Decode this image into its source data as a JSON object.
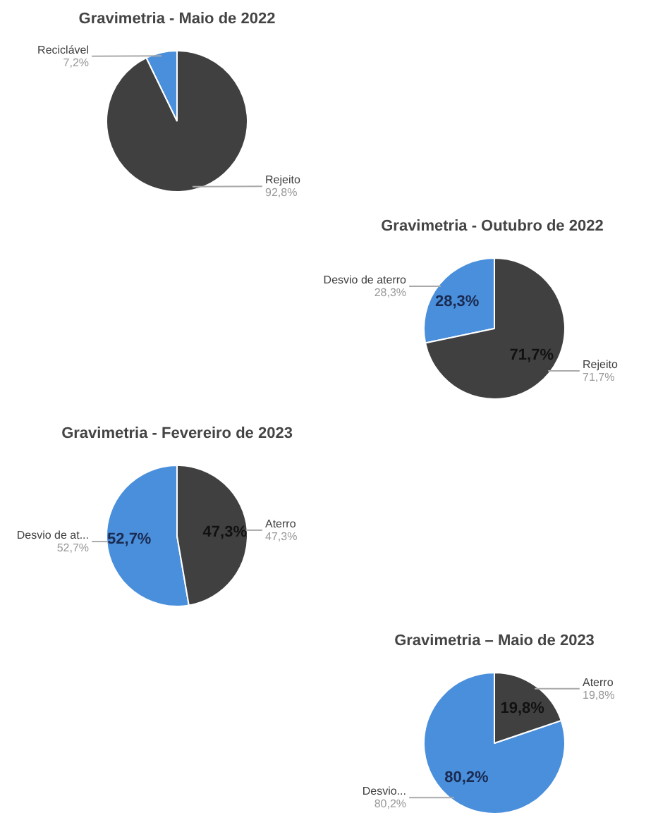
{
  "chart_data": [
    {
      "type": "pie",
      "title": "Gravimetria - Maio de 2022",
      "categories": [
        "Reciclável",
        "Rejeito"
      ],
      "values": [
        7.2,
        92.8
      ],
      "colors": [
        "#4a8fdb",
        "#404040"
      ],
      "value_labels": [
        "7,2%",
        "92,8%"
      ]
    },
    {
      "type": "pie",
      "title": "Gravimetria -  Outubro de 2022",
      "categories": [
        "Desvio de aterro",
        "Rejeito"
      ],
      "values": [
        28.3,
        71.7
      ],
      "colors": [
        "#4a8fdb",
        "#404040"
      ],
      "value_labels": [
        "28,3%",
        "71,7%"
      ],
      "data_labels": true
    },
    {
      "type": "pie",
      "title": "Gravimetria - Fevereiro de 2023",
      "categories": [
        "Desvio de at...",
        "Aterro"
      ],
      "values": [
        52.7,
        47.3
      ],
      "colors": [
        "#4a8fdb",
        "#404040"
      ],
      "value_labels": [
        "52,7%",
        "47,3%"
      ],
      "data_labels": true
    },
    {
      "type": "pie",
      "title": "Gravimetria – Maio de 2023",
      "categories": [
        "Desvio...",
        "Aterro"
      ],
      "values": [
        80.2,
        19.8
      ],
      "colors": [
        "#4a8fdb",
        "#404040"
      ],
      "value_labels": [
        "80,2%",
        "19,8%"
      ],
      "data_labels": true
    }
  ]
}
